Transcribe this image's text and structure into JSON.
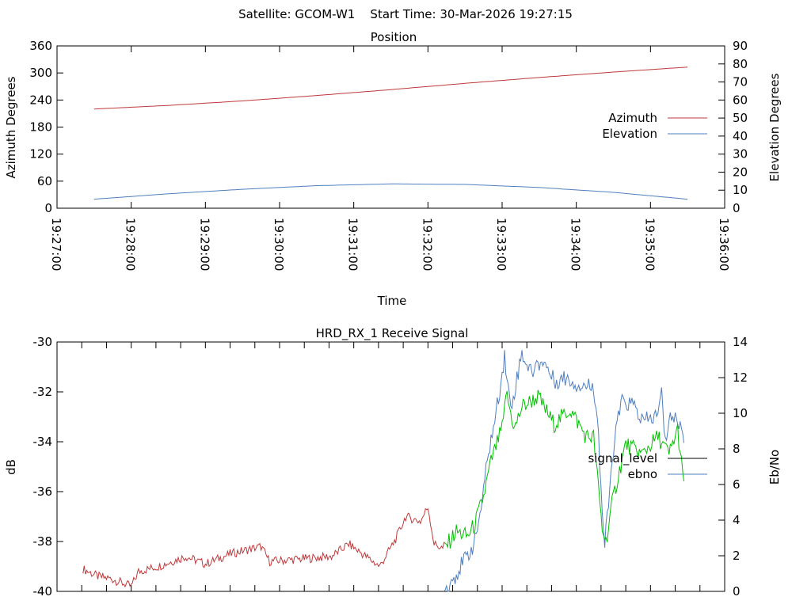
{
  "title": "Satellite: GCOM-W1    Start Time: 30-Mar-2026 19:27:15",
  "colors": {
    "azimuth": "#c0393b",
    "elevation": "#4f7fbf",
    "signal_red": "#c0393b",
    "signal_green": "#00c000",
    "ebno": "#4f7fbf",
    "legend_signal": "#000000"
  },
  "chart_data": [
    {
      "type": "line",
      "title": "Position",
      "xlabel": "Time",
      "ylabel": "Azimuth Degrees",
      "y2label": "Elevation Degrees",
      "xlim_seconds_from_192700": [
        0,
        540
      ],
      "ylim": [
        0,
        360
      ],
      "y2lim": [
        0,
        90
      ],
      "x_tick_labels": [
        "19:27:00",
        "19:28:00",
        "19:29:00",
        "19:30:00",
        "19:31:00",
        "19:32:00",
        "19:33:00",
        "19:34:00",
        "19:35:00",
        "19:36:00"
      ],
      "y_ticks": [
        "0",
        "60",
        "120",
        "180",
        "240",
        "300",
        "360"
      ],
      "y2_ticks": [
        "0",
        "10",
        "20",
        "30",
        "40",
        "50",
        "60",
        "70",
        "80",
        "90"
      ],
      "legend_position": "right",
      "series": [
        {
          "name": "Azimuth",
          "axis": "y",
          "t": [
            30,
            90,
            150,
            210,
            270,
            330,
            390,
            450,
            510
          ],
          "values": [
            220,
            228,
            238,
            250,
            263,
            277,
            290,
            302,
            313
          ]
        },
        {
          "name": "Elevation",
          "axis": "y2",
          "t": [
            30,
            90,
            150,
            210,
            270,
            330,
            390,
            450,
            510
          ],
          "values": [
            5,
            8,
            10.5,
            12.5,
            13.5,
            13.2,
            11.5,
            8.8,
            5
          ]
        }
      ]
    },
    {
      "type": "line",
      "title": "HRD_RX_1 Receive Signal",
      "ylabel": "dB",
      "y2label": "Eb/No",
      "xlim_seconds_from_192700": [
        0,
        540
      ],
      "ylim": [
        -40,
        -30
      ],
      "y2lim": [
        0,
        14
      ],
      "y_ticks": [
        "-40",
        "-38",
        "-36",
        "-34",
        "-32",
        "-30"
      ],
      "y2_ticks": [
        "0",
        "2",
        "4",
        "6",
        "8",
        "10",
        "12",
        "14"
      ],
      "legend_position": "right",
      "series": [
        {
          "name": "signal_level",
          "axis": "y",
          "t": [
            21,
            33,
            44,
            60,
            66,
            82,
            104,
            120,
            140,
            165,
            172,
            197,
            222,
            236,
            261,
            274,
            282,
            294,
            300,
            305,
            313,
            323,
            332,
            338,
            345,
            351,
            361,
            363,
            370,
            376,
            389,
            402,
            415,
            428,
            434,
            441,
            444,
            450,
            460,
            473,
            486,
            495,
            502,
            507
          ],
          "values": [
            -39.1,
            -39.4,
            -39.5,
            -39.8,
            -39.2,
            -39.0,
            -38.6,
            -38.9,
            -38.5,
            -38.2,
            -38.8,
            -38.7,
            -38.6,
            -38.1,
            -39.0,
            -37.9,
            -37.0,
            -37.2,
            -36.6,
            -38.1,
            -38.3,
            -37.6,
            -37.8,
            -37.3,
            -36.2,
            -34.8,
            -33.3,
            -32.0,
            -33.5,
            -32.6,
            -32.2,
            -33.3,
            -32.7,
            -33.8,
            -33.8,
            -37.5,
            -38.0,
            -36.2,
            -34.1,
            -34.5,
            -33.8,
            -34.5,
            -33.5,
            -35.8
          ],
          "green_from_t": 313
        },
        {
          "name": "ebno",
          "axis": "y2",
          "t": [
            313,
            323,
            332,
            338,
            345,
            348,
            354,
            362,
            367,
            376,
            383,
            393,
            402,
            412,
            421,
            434,
            437,
            441,
            443,
            450,
            456,
            466,
            474,
            486,
            489,
            492,
            495,
            503,
            507
          ],
          "values": [
            0,
            1.0,
            2.0,
            2.8,
            5.5,
            7.5,
            9.5,
            13.2,
            10.2,
            13.4,
            12.3,
            13.0,
            11.8,
            12.0,
            11.6,
            11.5,
            10.0,
            4.5,
            2.5,
            8.0,
            10.6,
            10.5,
            9.5,
            9.9,
            11.2,
            8.2,
            9.9,
            9.5,
            8.7
          ]
        }
      ]
    }
  ]
}
